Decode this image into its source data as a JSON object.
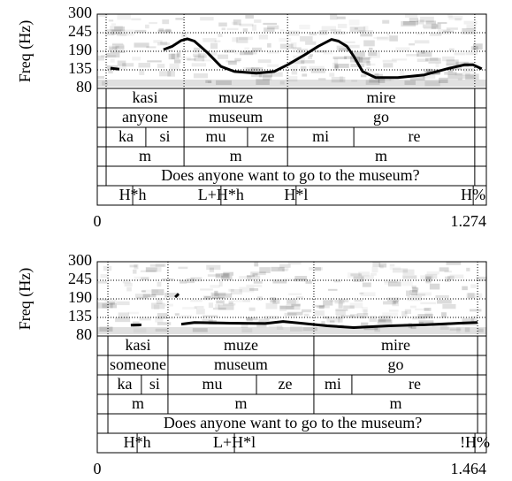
{
  "chart_data": [
    {
      "type": "line",
      "ylabel": "Freq (Hz)",
      "x": [
        0.043,
        0.072,
        null,
        0.217,
        0.246,
        0.275,
        0.295,
        0.318,
        0.362,
        0.405,
        0.449,
        0.521,
        0.579,
        0.623,
        0.68,
        0.724,
        0.767,
        0.79,
        0.817,
        0.84,
        0.869,
        0.912,
        0.984,
        1.071,
        1.144,
        1.202,
        1.231,
        1.259
      ],
      "series": [
        {
          "color": "#000000",
          "values": [
            140,
            137,
            null,
            195,
            205,
            222,
            227,
            220,
            185,
            145,
            130,
            125,
            130,
            150,
            180,
            205,
            225,
            220,
            205,
            175,
            130,
            112,
            112,
            120,
            138,
            150,
            150,
            138
          ]
        }
      ],
      "ylim": [
        80,
        300
      ],
      "yticks": [
        300,
        245,
        190,
        135,
        80
      ],
      "xlim": [
        0,
        1.274
      ],
      "xticks": [
        0,
        1.274
      ],
      "grid": true,
      "tiers": [
        {
          "boundaries": [
            0.029,
            0.284,
            0.623,
            1.236
          ],
          "labels": [
            "kasi",
            "muze",
            "mire"
          ]
        },
        {
          "boundaries": [
            0.029,
            0.284,
            0.623,
            1.236
          ],
          "labels": [
            "anyone",
            "museum",
            "go"
          ]
        },
        {
          "boundaries": [
            0.029,
            0.159,
            0.284,
            0.492,
            0.623,
            0.84,
            1.236
          ],
          "labels": [
            "ka",
            "si",
            "mu",
            "ze",
            "mi",
            "re"
          ]
        },
        {
          "boundaries": [
            0.029,
            0.284,
            0.623,
            1.236
          ],
          "labels": [
            "m",
            "m",
            "m"
          ]
        },
        {
          "boundaries": [
            0.029,
            1.236
          ],
          "labels": [
            "Does anyone want to go to the museum?"
          ]
        }
      ],
      "tones": {
        "times": [
          0.116,
          0.405,
          0.651,
          1.231
        ],
        "labels": [
          "H*h",
          "L+H*h",
          "H*l",
          "H%"
        ]
      }
    },
    {
      "type": "line",
      "ylabel": "Freq (Hz)",
      "x": [
        0.126,
        0.166,
        null,
        0.293,
        0.306,
        null,
        0.316,
        0.366,
        0.499,
        0.632,
        0.699,
        0.765,
        0.865,
        0.965,
        1.098,
        1.231,
        1.364,
        1.431
      ],
      "series": [
        {
          "color": "#000000",
          "values": [
            112,
            113,
            null,
            195,
            205,
            null,
            115,
            120,
            118,
            117,
            123,
            118,
            110,
            105,
            110,
            113,
            118,
            120
          ]
        }
      ],
      "ylim": [
        80,
        300
      ],
      "yticks": [
        300,
        245,
        190,
        135,
        80
      ],
      "xlim": [
        0,
        1.464
      ],
      "xticks": [
        0,
        1.464
      ],
      "grid": true,
      "tiers": [
        {
          "boundaries": [
            0.04,
            0.266,
            0.815,
            1.431
          ],
          "labels": [
            "kasi",
            "muze",
            "mire"
          ]
        },
        {
          "boundaries": [
            0.04,
            0.266,
            0.815,
            1.431
          ],
          "labels": [
            "someone",
            "museum",
            "go"
          ]
        },
        {
          "boundaries": [
            0.04,
            0.166,
            0.266,
            0.599,
            0.815,
            0.958,
            1.431
          ],
          "labels": [
            "ka",
            "si",
            "mu",
            "ze",
            "mi",
            "re"
          ]
        },
        {
          "boundaries": [
            0.04,
            0.266,
            0.815,
            1.431
          ],
          "labels": [
            "m",
            "m",
            "m"
          ]
        },
        {
          "boundaries": [
            0.04,
            1.431
          ],
          "labels": [
            "Does anyone want to go to the museum?"
          ]
        }
      ],
      "tones": {
        "times": [
          0.15,
          0.516,
          1.421
        ],
        "labels": [
          "H*h",
          "L+H*l",
          "!H%"
        ]
      }
    }
  ]
}
